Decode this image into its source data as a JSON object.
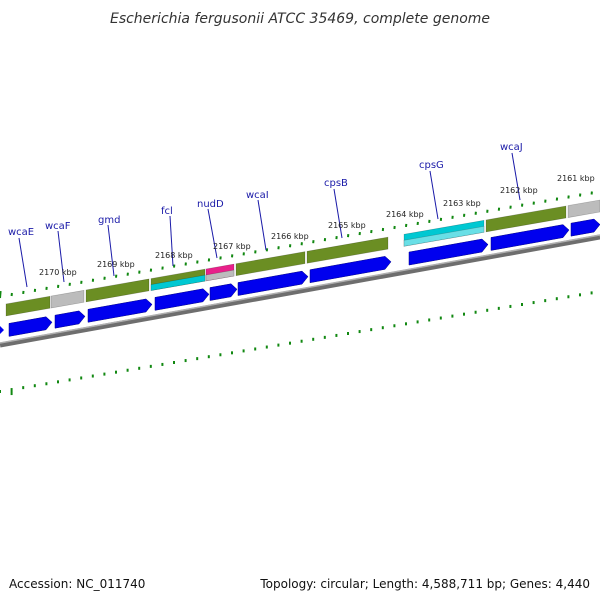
{
  "title": "Escherichia fergusonii ATCC 35469, complete genome",
  "footer": {
    "accession": "Accession: NC_011740",
    "summary": "Topology: circular; Length: 4,588,711 bp; Genes: 4,440"
  },
  "colors": {
    "cds": "#0000ee",
    "olive": "#6b8e23",
    "grey": "#bcbcbc",
    "cyan": "#00c8d2",
    "magenta": "#e8208a",
    "backbone": "#808080",
    "ticks": "#118811",
    "label": "#1a1aa8",
    "text": "#222222"
  },
  "genes": [
    {
      "name": "wcaE"
    },
    {
      "name": "wcaF"
    },
    {
      "name": "gmd"
    },
    {
      "name": "fcl"
    },
    {
      "name": "nudD"
    },
    {
      "name": "wcaI"
    },
    {
      "name": "cpsB"
    },
    {
      "name": "cpsG"
    },
    {
      "name": "wcaJ"
    }
  ],
  "ticks": [
    {
      "label": "2170 kbp"
    },
    {
      "label": "2169 kbp"
    },
    {
      "label": "2168 kbp"
    },
    {
      "label": "2167 kbp"
    },
    {
      "label": "2166 kbp"
    },
    {
      "label": "2165 kbp"
    },
    {
      "label": "2164 kbp"
    },
    {
      "label": "2163 kbp"
    },
    {
      "label": "2162 kbp"
    },
    {
      "label": "2161 kbp"
    }
  ]
}
